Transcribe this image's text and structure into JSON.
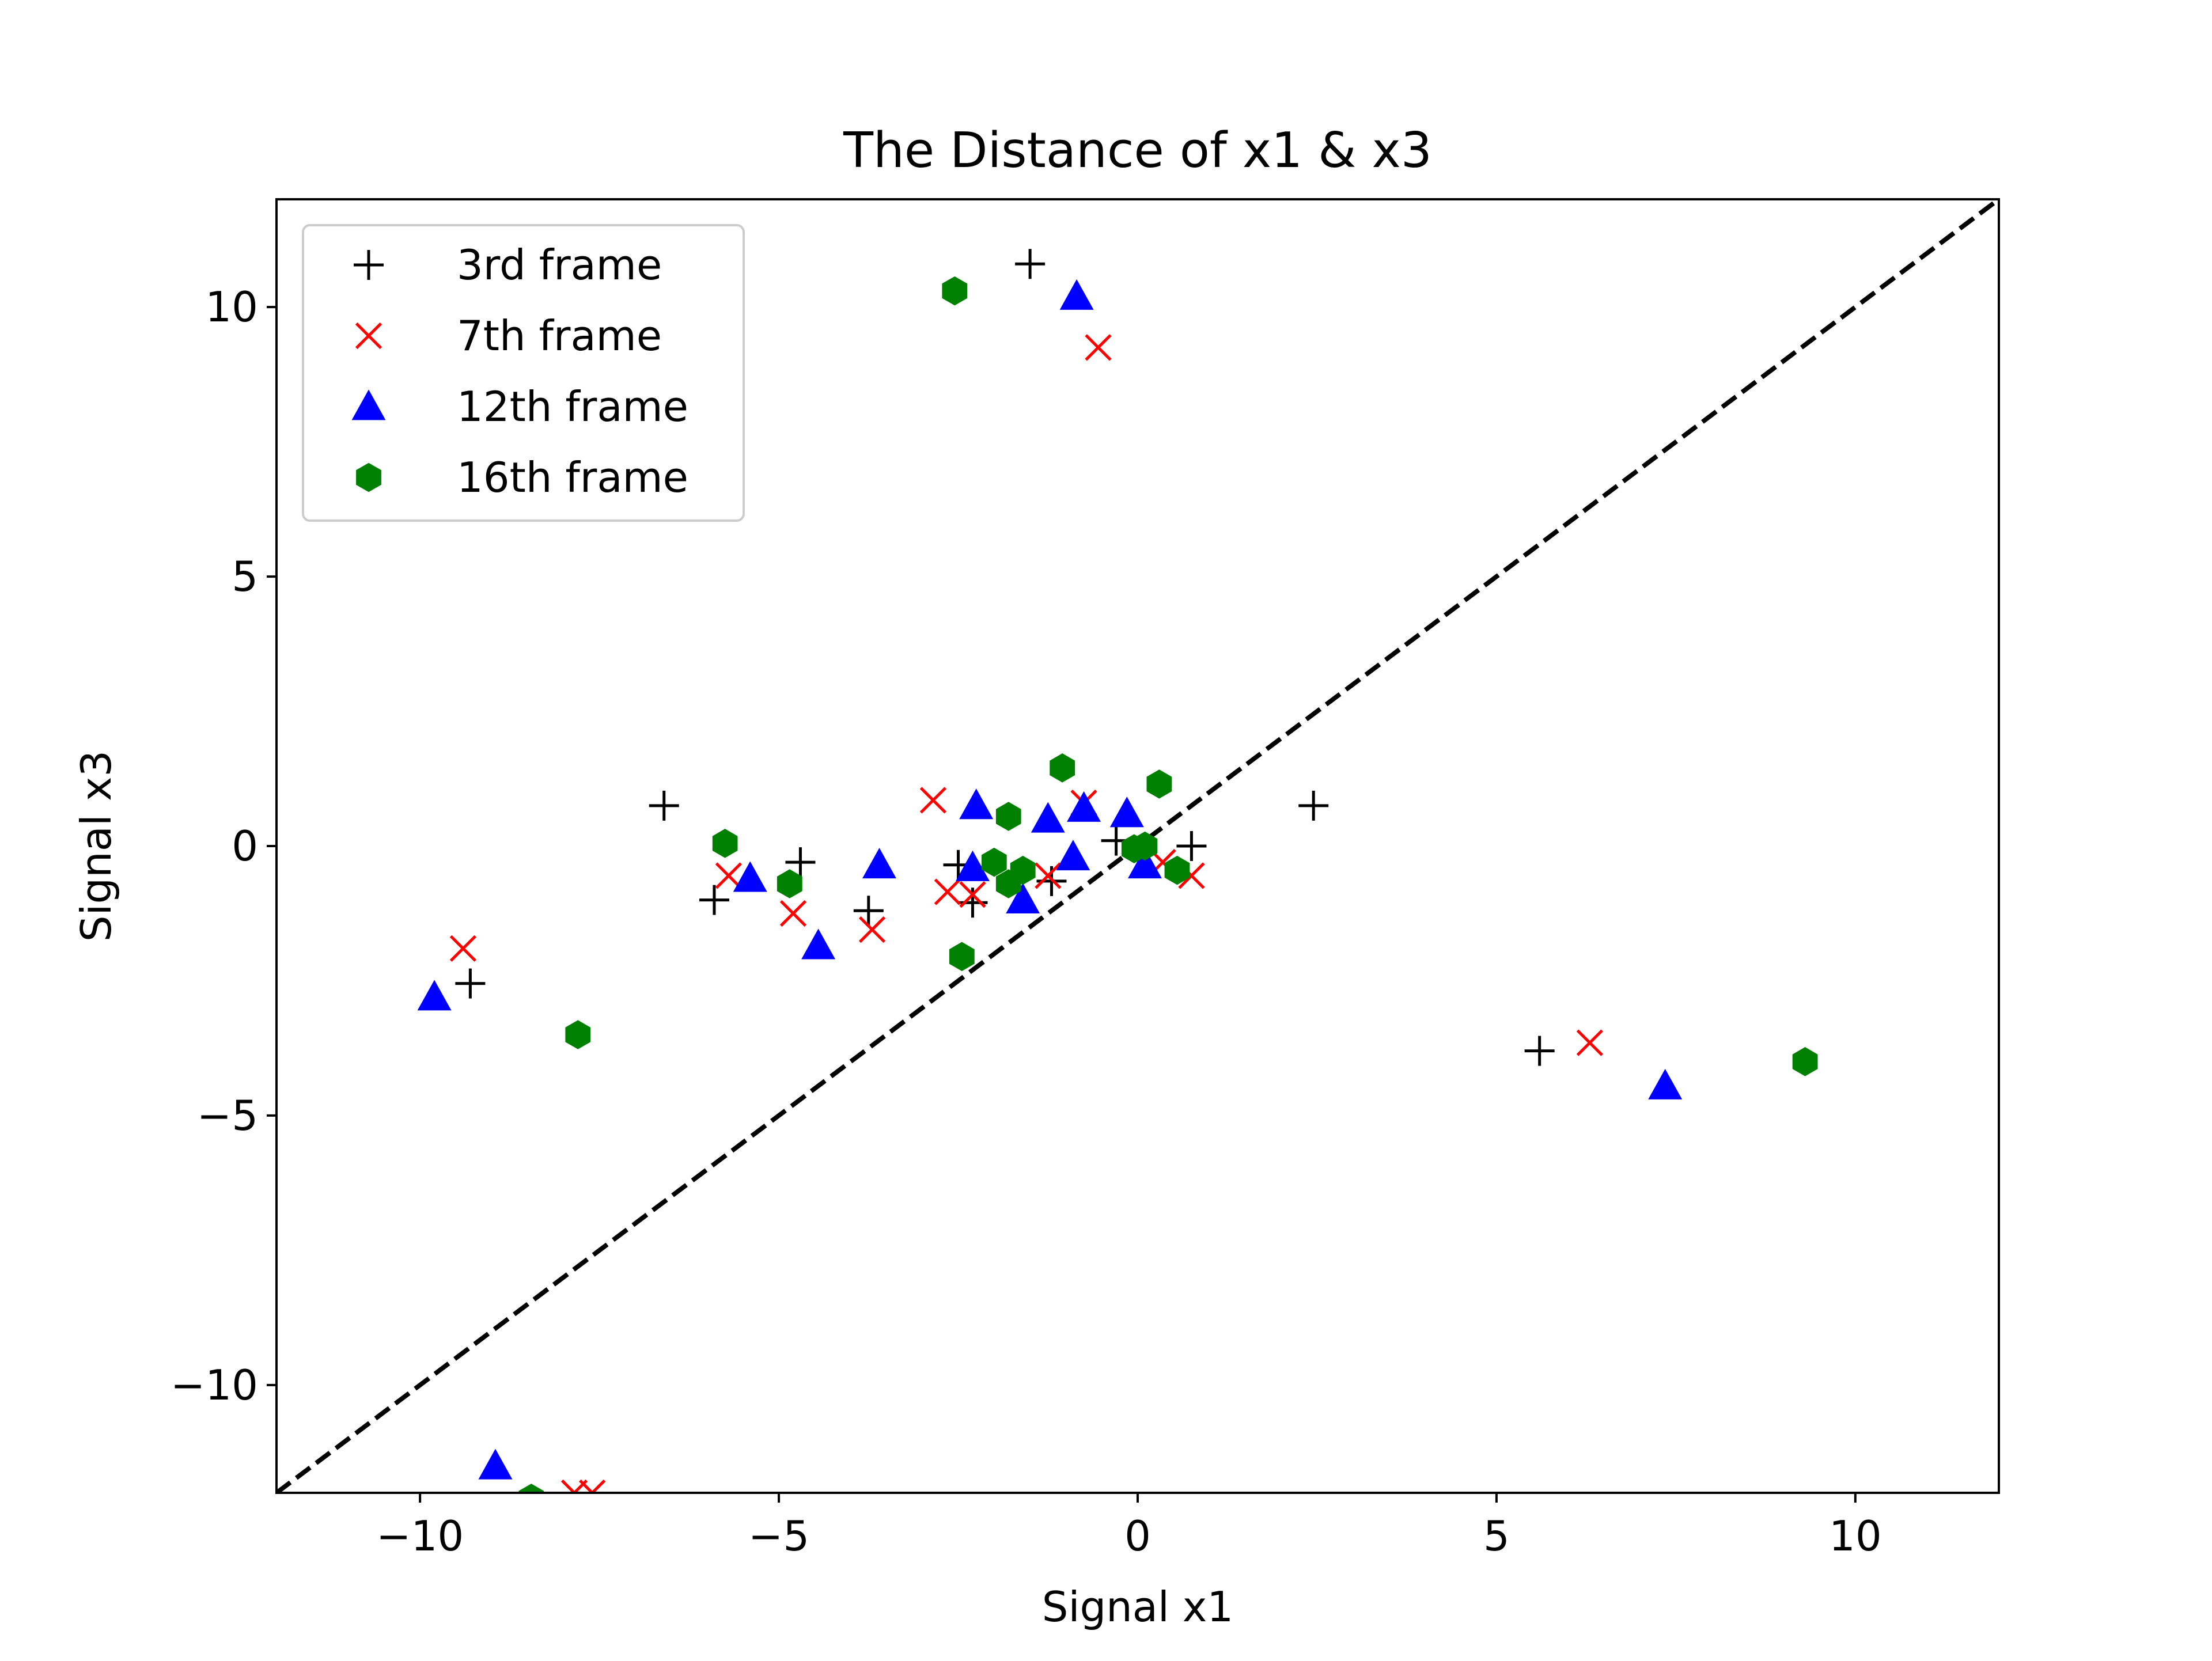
{
  "chart_data": {
    "type": "scatter",
    "title": "The Distance of x1 & x3",
    "xlabel": "Signal x1",
    "ylabel": "Signal x3",
    "xlim": [
      -12,
      12
    ],
    "ylim": [
      -12,
      12
    ],
    "xticks": [
      -10,
      -5,
      0,
      5,
      10
    ],
    "yticks": [
      -10,
      -5,
      0,
      5,
      10
    ],
    "xtick_labels": [
      "−10",
      "−5",
      "0",
      "5",
      "10"
    ],
    "ytick_labels": [
      "−10",
      "−5",
      "0",
      "5",
      "10"
    ],
    "grid": false,
    "legend_position": "top-left",
    "reference_line": {
      "style": "dashed",
      "color": "#000000",
      "from": [
        -12,
        -12
      ],
      "to": [
        12,
        12
      ]
    },
    "series": [
      {
        "name": "3rd frame",
        "marker": "plus",
        "color": "#000000",
        "points": [
          [
            -1.5,
            10.8
          ],
          [
            -6.6,
            0.75
          ],
          [
            -9.3,
            -2.55
          ],
          [
            -5.9,
            -1.0
          ],
          [
            -4.7,
            -0.3
          ],
          [
            -3.75,
            -1.2
          ],
          [
            -2.5,
            -0.35
          ],
          [
            -2.3,
            -1.05
          ],
          [
            -1.2,
            -0.65
          ],
          [
            -0.3,
            0.1
          ],
          [
            0.75,
            0.0
          ],
          [
            2.45,
            0.75
          ],
          [
            5.6,
            -3.8
          ]
        ]
      },
      {
        "name": "7th frame",
        "marker": "x",
        "color": "#ff0000",
        "points": [
          [
            -0.55,
            9.25
          ],
          [
            -9.4,
            -1.9
          ],
          [
            -5.7,
            -0.55
          ],
          [
            -4.8,
            -1.25
          ],
          [
            -3.7,
            -1.55
          ],
          [
            -2.85,
            0.85
          ],
          [
            -2.65,
            -0.85
          ],
          [
            -2.3,
            -0.9
          ],
          [
            -1.25,
            -0.55
          ],
          [
            -0.75,
            0.8
          ],
          [
            0.35,
            -0.3
          ],
          [
            0.75,
            -0.55
          ],
          [
            6.3,
            -3.65
          ],
          [
            -7.85,
            -12.0
          ],
          [
            -7.6,
            -12.0
          ]
        ]
      },
      {
        "name": "12th frame",
        "marker": "triangle",
        "color": "#0000ff",
        "points": [
          [
            -0.85,
            10.2
          ],
          [
            -9.8,
            -2.8
          ],
          [
            -5.4,
            -0.6
          ],
          [
            -4.45,
            -1.85
          ],
          [
            -3.6,
            -0.35
          ],
          [
            -2.25,
            0.75
          ],
          [
            -2.3,
            -0.4
          ],
          [
            -1.6,
            -1.0
          ],
          [
            -1.25,
            0.5
          ],
          [
            -0.9,
            -0.2
          ],
          [
            -0.75,
            0.7
          ],
          [
            -0.15,
            0.6
          ],
          [
            0.1,
            -0.35
          ],
          [
            7.35,
            -4.45
          ],
          [
            -8.95,
            -11.5
          ]
        ]
      },
      {
        "name": "16th frame",
        "marker": "hexagon",
        "color": "#008000",
        "points": [
          [
            -2.55,
            10.3
          ],
          [
            -5.75,
            0.05
          ],
          [
            -4.85,
            -0.7
          ],
          [
            -7.8,
            -3.5
          ],
          [
            -2.45,
            -2.05
          ],
          [
            -2.0,
            -0.3
          ],
          [
            -1.8,
            0.55
          ],
          [
            -1.8,
            -0.7
          ],
          [
            -1.6,
            -0.45
          ],
          [
            -1.05,
            1.45
          ],
          [
            -0.05,
            -0.05
          ],
          [
            0.1,
            0.0
          ],
          [
            0.3,
            1.15
          ],
          [
            0.55,
            -0.45
          ],
          [
            9.3,
            -4.0
          ],
          [
            -8.45,
            -12.1
          ]
        ]
      }
    ]
  }
}
